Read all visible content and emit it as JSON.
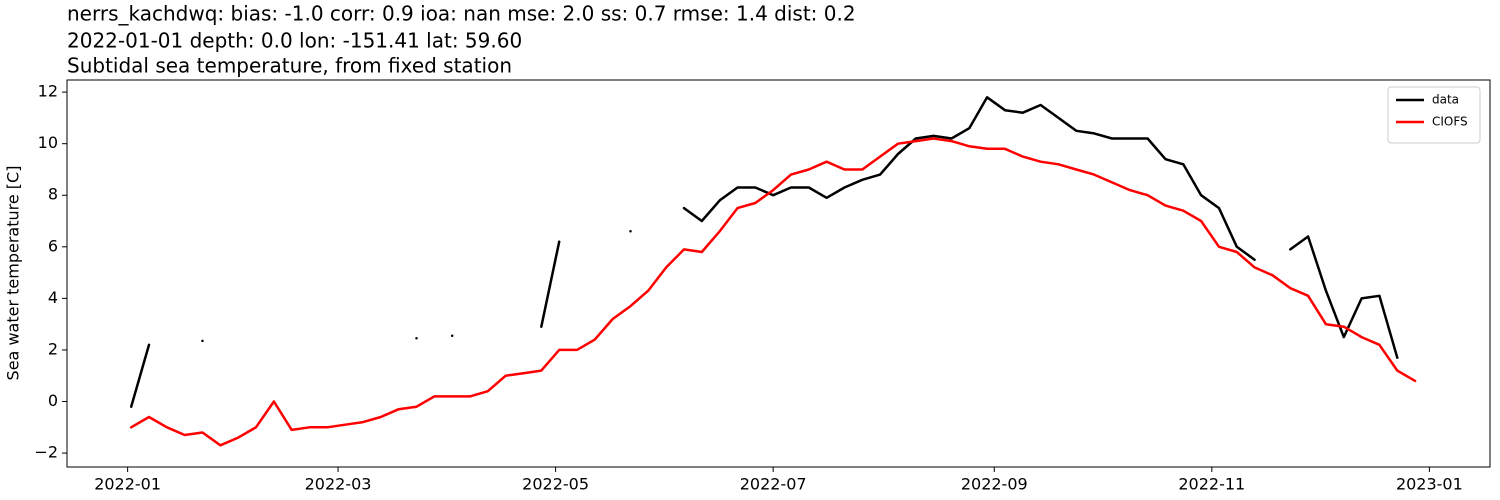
{
  "chart_data": {
    "type": "line",
    "title": "nerrs_kachdwq: bias: -1.0  corr: 0.9  ioa: nan  mse: 2.0  ss: 0.7  rmse: 1.4  dist: 0.2",
    "subtitle": "2022-01-01 depth: 0.0 lon: -151.41 lat: 59.60",
    "subtitle2": "Subtidal sea temperature, from fixed station",
    "ylabel": "Sea water temperature [C]",
    "x": [
      "2022-01-02",
      "2022-01-07",
      "2022-01-12",
      "2022-01-17",
      "2022-01-22",
      "2022-01-27",
      "2022-02-01",
      "2022-02-06",
      "2022-02-11",
      "2022-02-16",
      "2022-02-21",
      "2022-02-26",
      "2022-03-03",
      "2022-03-08",
      "2022-03-13",
      "2022-03-18",
      "2022-03-23",
      "2022-03-28",
      "2022-04-02",
      "2022-04-07",
      "2022-04-12",
      "2022-04-17",
      "2022-04-22",
      "2022-04-27",
      "2022-05-02",
      "2022-05-07",
      "2022-05-12",
      "2022-05-17",
      "2022-05-22",
      "2022-05-27",
      "2022-06-01",
      "2022-06-06",
      "2022-06-11",
      "2022-06-16",
      "2022-06-21",
      "2022-06-26",
      "2022-07-01",
      "2022-07-06",
      "2022-07-11",
      "2022-07-16",
      "2022-07-21",
      "2022-07-26",
      "2022-07-31",
      "2022-08-05",
      "2022-08-10",
      "2022-08-15",
      "2022-08-20",
      "2022-08-25",
      "2022-08-30",
      "2022-09-04",
      "2022-09-09",
      "2022-09-14",
      "2022-09-19",
      "2022-09-24",
      "2022-09-29",
      "2022-10-04",
      "2022-10-09",
      "2022-10-14",
      "2022-10-19",
      "2022-10-24",
      "2022-10-29",
      "2022-11-03",
      "2022-11-08",
      "2022-11-13",
      "2022-11-18",
      "2022-11-23",
      "2022-11-28",
      "2022-12-03",
      "2022-12-08",
      "2022-12-13",
      "2022-12-18",
      "2022-12-23",
      "2022-12-28"
    ],
    "series": [
      {
        "name": "data",
        "color": "#000000",
        "values": [
          -0.2,
          2.2,
          null,
          null,
          2.35,
          null,
          null,
          null,
          null,
          null,
          null,
          null,
          null,
          null,
          null,
          null,
          2.45,
          null,
          2.55,
          null,
          null,
          null,
          null,
          2.9,
          6.2,
          null,
          null,
          null,
          6.6,
          null,
          null,
          7.5,
          7.0,
          7.8,
          8.3,
          8.3,
          8.0,
          8.3,
          8.3,
          7.9,
          8.3,
          8.6,
          8.8,
          9.6,
          10.2,
          10.3,
          10.2,
          10.6,
          11.8,
          11.3,
          11.2,
          11.5,
          11.0,
          10.5,
          10.4,
          10.2,
          10.2,
          10.2,
          9.4,
          9.2,
          8.0,
          7.5,
          6.0,
          5.5,
          null,
          5.9,
          6.4,
          4.3,
          2.5,
          4.0,
          4.1,
          1.7,
          null
        ]
      },
      {
        "name": "CIOFS",
        "color": "#ff0000",
        "values": [
          -1.0,
          -0.6,
          -1.0,
          -1.3,
          -1.2,
          -1.7,
          -1.4,
          -1.0,
          0.0,
          -1.1,
          -1.0,
          -1.0,
          -0.9,
          -0.8,
          -0.6,
          -0.3,
          -0.2,
          0.2,
          0.2,
          0.2,
          0.4,
          1.0,
          1.1,
          1.2,
          2.0,
          2.0,
          2.4,
          3.2,
          3.7,
          4.3,
          5.2,
          5.9,
          5.8,
          6.6,
          7.5,
          7.7,
          8.2,
          8.8,
          9.0,
          9.3,
          9.0,
          9.0,
          9.5,
          10.0,
          10.1,
          10.2,
          10.1,
          9.9,
          9.8,
          9.8,
          9.5,
          9.3,
          9.2,
          9.0,
          8.8,
          8.5,
          8.2,
          8.0,
          7.6,
          7.4,
          7.0,
          6.0,
          5.8,
          5.2,
          4.9,
          4.4,
          4.1,
          3.0,
          2.9,
          2.5,
          2.2,
          1.2,
          0.8
        ]
      }
    ],
    "xlim": [
      "2021-12-15",
      "2023-01-18"
    ],
    "xticks": [
      {
        "value": "2022-01-01",
        "label": "2022-01"
      },
      {
        "value": "2022-03-01",
        "label": "2022-03"
      },
      {
        "value": "2022-05-01",
        "label": "2022-05"
      },
      {
        "value": "2022-07-01",
        "label": "2022-07"
      },
      {
        "value": "2022-09-01",
        "label": "2022-09"
      },
      {
        "value": "2022-11-01",
        "label": "2022-11"
      },
      {
        "value": "2023-01-01",
        "label": "2023-01"
      }
    ],
    "ylim": [
      -2.54,
      12.47
    ],
    "yticks": [
      {
        "value": -2,
        "label": "−2"
      },
      0,
      2,
      4,
      6,
      8,
      10,
      12
    ],
    "grid": false,
    "legend": "upper right"
  }
}
